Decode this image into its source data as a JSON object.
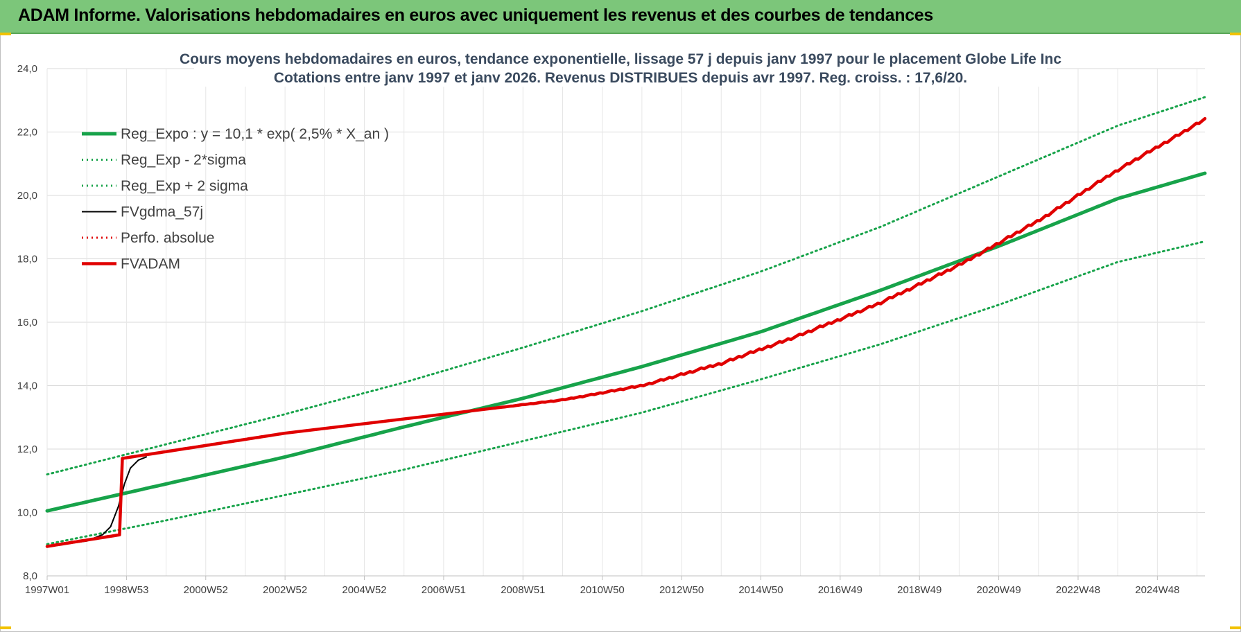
{
  "banner": {
    "title": "ADAM Informe. Valorisations hebdomadaires en euros avec uniquement les revenus et des courbes de tendances"
  },
  "chart_data": {
    "type": "line",
    "title": "Cours moyens hebdomadaires en euros, tendance exponentielle, lissage 57 j depuis janv 1997  pour le placement Globe Life Inc",
    "subtitle": "Cotations entre janv 1997 et janv 2026. Revenus DISTRIBUES depuis avr 1997.  Reg. croiss. : 17,6/20.",
    "xlabel": "",
    "ylabel": "",
    "ylim": [
      8,
      24
    ],
    "xlim": [
      1997.0,
      2026.2
    ],
    "yticks": [
      "8,0",
      "10,0",
      "12,0",
      "14,0",
      "16,0",
      "18,0",
      "20,0",
      "22,0",
      "24,0"
    ],
    "ytick_values": [
      8,
      10,
      12,
      14,
      16,
      18,
      20,
      22,
      24
    ],
    "xticks": [
      "1997W01",
      "1998W53",
      "2000W52",
      "2002W52",
      "2004W52",
      "2006W51",
      "2008W51",
      "2010W50",
      "2012W50",
      "2014W50",
      "2016W49",
      "2018W49",
      "2020W49",
      "2022W48",
      "2024W48"
    ],
    "xtick_values": [
      1997.0,
      1999.0,
      2001.0,
      2003.0,
      2005.0,
      2007.0,
      2009.0,
      2011.0,
      2013.0,
      2015.0,
      2017.0,
      2019.0,
      2021.0,
      2023.0,
      2025.0
    ],
    "grid": true,
    "legend_position": "top-left",
    "colors": {
      "green": "#17a34a",
      "black": "#000000",
      "red": "#e00000"
    },
    "series": [
      {
        "name": "Reg_Expo : y = 10,1 * exp( 2,5% *  X_an )",
        "style": "solid-thick",
        "color": "#17a34a",
        "x": [
          1997.0,
          2000.0,
          2003.0,
          2006.0,
          2009.0,
          2012.0,
          2015.0,
          2018.0,
          2021.0,
          2024.0,
          2026.2
        ],
        "y": [
          10.05,
          10.9,
          11.75,
          12.7,
          13.6,
          14.6,
          15.7,
          17.0,
          18.4,
          19.9,
          20.7
        ]
      },
      {
        "name": "Reg_Exp - 2*sigma",
        "style": "dotted",
        "color": "#17a34a",
        "x": [
          1997.0,
          2000.0,
          2003.0,
          2006.0,
          2009.0,
          2012.0,
          2015.0,
          2018.0,
          2021.0,
          2024.0,
          2026.2
        ],
        "y": [
          9.0,
          9.75,
          10.55,
          11.35,
          12.25,
          13.15,
          14.2,
          15.3,
          16.55,
          17.9,
          18.55
        ]
      },
      {
        "name": "Reg_Exp + 2 sigma",
        "style": "dotted",
        "color": "#17a34a",
        "x": [
          1997.0,
          2000.0,
          2003.0,
          2006.0,
          2009.0,
          2012.0,
          2015.0,
          2018.0,
          2021.0,
          2024.0,
          2026.2
        ],
        "y": [
          11.2,
          12.15,
          13.1,
          14.1,
          15.2,
          16.35,
          17.6,
          19.0,
          20.6,
          22.2,
          23.1
        ]
      },
      {
        "name": "FVgdma_57j",
        "style": "solid",
        "color": "#000000",
        "x": [
          1997.0,
          1998.0,
          1998.4,
          1998.6,
          1998.8,
          1998.95,
          1999.1,
          1999.3,
          1999.5
        ],
        "y": [
          8.93,
          9.1,
          9.3,
          9.55,
          10.2,
          10.9,
          11.4,
          11.65,
          11.75
        ]
      },
      {
        "name": "Perfo. absolue",
        "style": "dotted",
        "color": "#e00000",
        "x": [
          1997.0,
          1998.85,
          1998.87,
          2003.0,
          2007.0,
          2010.0,
          2012.0,
          2014.0,
          2016.0,
          2018.0,
          2020.0,
          2022.0,
          2024.0,
          2026.2
        ],
        "y": [
          8.93,
          9.3,
          11.7,
          12.5,
          13.1,
          13.55,
          14.0,
          14.7,
          15.6,
          16.6,
          17.8,
          19.2,
          20.8,
          22.4
        ]
      },
      {
        "name": "FVADAM",
        "style": "solid-thick-steps",
        "color": "#e00000",
        "x": [
          1997.0,
          1998.85,
          1998.87,
          2003.0,
          2007.0,
          2010.0,
          2012.0,
          2014.0,
          2016.0,
          2018.0,
          2020.0,
          2022.0,
          2024.0,
          2026.2
        ],
        "y": [
          8.93,
          9.3,
          11.7,
          12.5,
          13.1,
          13.55,
          14.0,
          14.7,
          15.6,
          16.6,
          17.8,
          19.2,
          20.8,
          22.4
        ]
      }
    ]
  }
}
